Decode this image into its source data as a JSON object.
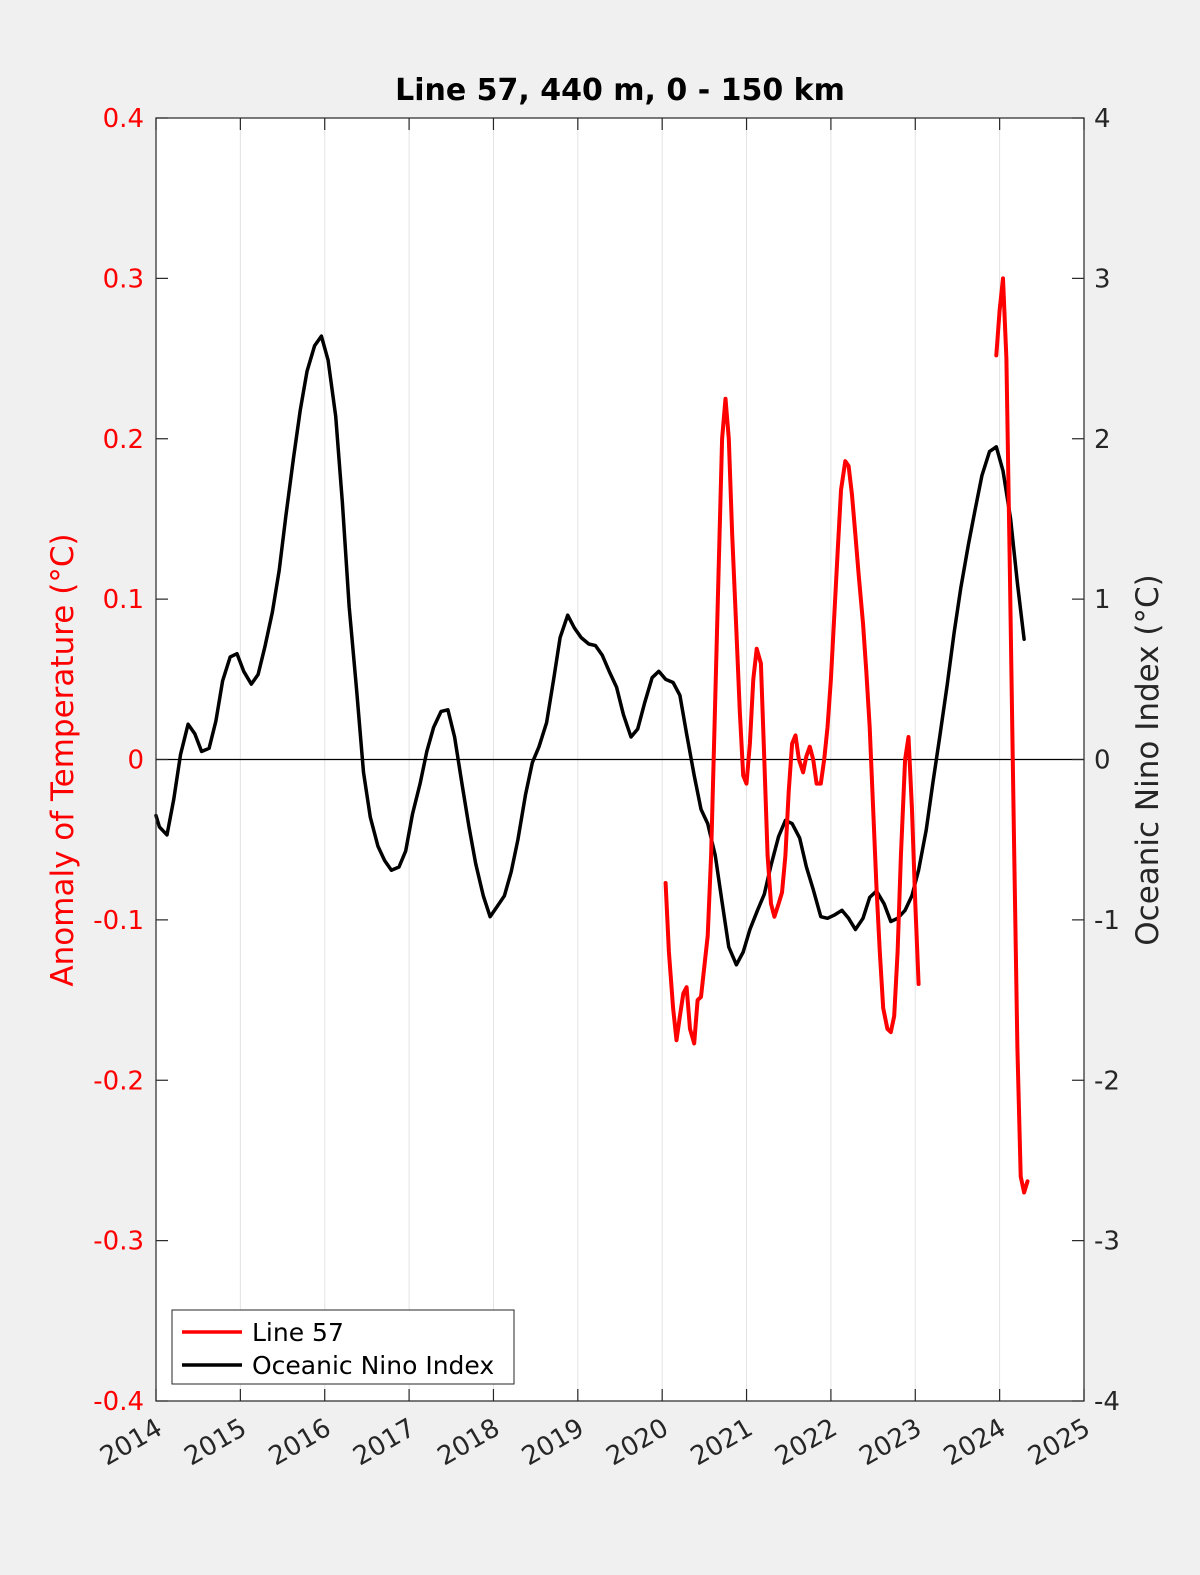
{
  "chart_data": {
    "type": "line",
    "title": "Line 57, 440 m, 0 - 150 km",
    "ylabel_left": "Anomaly of Temperature (°C)",
    "ylabel_right": "Oceanic Nino Index (°C)",
    "xlabel": "",
    "xlim": [
      2014,
      2025
    ],
    "ylim_left": [
      -0.4,
      0.4
    ],
    "ylim_right": [
      -4,
      4
    ],
    "x_ticks": [
      "2014",
      "2015",
      "2016",
      "2017",
      "2018",
      "2019",
      "2020",
      "2021",
      "2022",
      "2023",
      "2024",
      "2025"
    ],
    "y_left_ticks": [
      "-0.4",
      "-0.3",
      "-0.2",
      "-0.1",
      "0",
      "0.1",
      "0.2",
      "0.3",
      "0.4"
    ],
    "y_right_ticks": [
      "-4",
      "-3",
      "-2",
      "-1",
      "0",
      "1",
      "2",
      "3",
      "4"
    ],
    "grid": "vertical",
    "zero_line": true,
    "legend_position": "bottom-left",
    "colors": {
      "line57": "#ff0000",
      "oni": "#000000",
      "left_axis": "#ff0000",
      "right_axis": "#262626"
    },
    "series": [
      {
        "name": "Line 57",
        "axis": "left",
        "color": "#ff0000",
        "segments": [
          [
            [
              2020.04,
              -0.077
            ],
            [
              2020.08,
              -0.12
            ],
            [
              2020.13,
              -0.155
            ],
            [
              2020.17,
              -0.175
            ],
            [
              2020.21,
              -0.16
            ],
            [
              2020.25,
              -0.146
            ],
            [
              2020.29,
              -0.142
            ],
            [
              2020.33,
              -0.168
            ],
            [
              2020.38,
              -0.177
            ],
            [
              2020.42,
              -0.15
            ],
            [
              2020.46,
              -0.148
            ],
            [
              2020.54,
              -0.11
            ],
            [
              2020.58,
              -0.06
            ],
            [
              2020.62,
              0.02
            ],
            [
              2020.67,
              0.12
            ],
            [
              2020.71,
              0.2
            ],
            [
              2020.75,
              0.225
            ],
            [
              2020.79,
              0.2
            ],
            [
              2020.83,
              0.14
            ],
            [
              2020.88,
              0.08
            ],
            [
              2020.92,
              0.03
            ],
            [
              2020.96,
              -0.01
            ],
            [
              2021.0,
              -0.015
            ],
            [
              2021.04,
              0.01
            ],
            [
              2021.08,
              0.05
            ],
            [
              2021.12,
              0.069
            ],
            [
              2021.17,
              0.06
            ],
            [
              2021.21,
              0.0
            ],
            [
              2021.25,
              -0.06
            ],
            [
              2021.29,
              -0.09
            ],
            [
              2021.33,
              -0.098
            ],
            [
              2021.38,
              -0.09
            ],
            [
              2021.42,
              -0.083
            ],
            [
              2021.46,
              -0.06
            ],
            [
              2021.5,
              -0.02
            ],
            [
              2021.54,
              0.01
            ],
            [
              2021.58,
              0.015
            ],
            [
              2021.62,
              0.0
            ],
            [
              2021.67,
              -0.008
            ],
            [
              2021.71,
              0.002
            ],
            [
              2021.75,
              0.008
            ],
            [
              2021.79,
              0.0
            ],
            [
              2021.83,
              -0.015
            ],
            [
              2021.88,
              -0.015
            ],
            [
              2021.92,
              0.0
            ],
            [
              2021.96,
              0.02
            ],
            [
              2022.0,
              0.05
            ],
            [
              2022.04,
              0.09
            ],
            [
              2022.08,
              0.13
            ],
            [
              2022.12,
              0.168
            ],
            [
              2022.17,
              0.186
            ],
            [
              2022.21,
              0.183
            ],
            [
              2022.25,
              0.165
            ],
            [
              2022.29,
              0.14
            ],
            [
              2022.33,
              0.115
            ],
            [
              2022.38,
              0.085
            ],
            [
              2022.42,
              0.055
            ],
            [
              2022.46,
              0.02
            ],
            [
              2022.5,
              -0.03
            ],
            [
              2022.54,
              -0.08
            ],
            [
              2022.58,
              -0.12
            ],
            [
              2022.62,
              -0.155
            ],
            [
              2022.67,
              -0.168
            ],
            [
              2022.71,
              -0.17
            ],
            [
              2022.75,
              -0.16
            ],
            [
              2022.79,
              -0.12
            ],
            [
              2022.83,
              -0.06
            ],
            [
              2022.88,
              0.0
            ],
            [
              2022.92,
              0.014
            ],
            [
              2022.96,
              -0.03
            ],
            [
              2023.0,
              -0.09
            ],
            [
              2023.04,
              -0.14
            ]
          ],
          [
            [
              2023.96,
              0.252
            ],
            [
              2024.0,
              0.28
            ],
            [
              2024.04,
              0.3
            ],
            [
              2024.08,
              0.25
            ],
            [
              2024.12,
              0.12
            ],
            [
              2024.17,
              -0.05
            ],
            [
              2024.21,
              -0.18
            ],
            [
              2024.25,
              -0.26
            ],
            [
              2024.29,
              -0.27
            ],
            [
              2024.33,
              -0.263
            ]
          ]
        ]
      },
      {
        "name": "Oceanic Nino Index",
        "axis": "right",
        "color": "#000000",
        "points": [
          [
            2014.0,
            -0.35
          ],
          [
            2014.04,
            -0.42
          ],
          [
            2014.13,
            -0.47
          ],
          [
            2014.21,
            -0.25
          ],
          [
            2014.29,
            0.03
          ],
          [
            2014.38,
            0.22
          ],
          [
            2014.46,
            0.16
          ],
          [
            2014.54,
            0.05
          ],
          [
            2014.63,
            0.07
          ],
          [
            2014.71,
            0.24
          ],
          [
            2014.79,
            0.49
          ],
          [
            2014.88,
            0.64
          ],
          [
            2014.96,
            0.66
          ],
          [
            2015.04,
            0.55
          ],
          [
            2015.13,
            0.47
          ],
          [
            2015.21,
            0.53
          ],
          [
            2015.29,
            0.7
          ],
          [
            2015.38,
            0.92
          ],
          [
            2015.46,
            1.18
          ],
          [
            2015.54,
            1.52
          ],
          [
            2015.63,
            1.88
          ],
          [
            2015.71,
            2.18
          ],
          [
            2015.79,
            2.42
          ],
          [
            2015.88,
            2.58
          ],
          [
            2015.96,
            2.64
          ],
          [
            2016.04,
            2.49
          ],
          [
            2016.13,
            2.14
          ],
          [
            2016.21,
            1.6
          ],
          [
            2016.29,
            0.95
          ],
          [
            2016.38,
            0.42
          ],
          [
            2016.46,
            -0.08
          ],
          [
            2016.54,
            -0.36
          ],
          [
            2016.63,
            -0.54
          ],
          [
            2016.71,
            -0.63
          ],
          [
            2016.79,
            -0.69
          ],
          [
            2016.88,
            -0.67
          ],
          [
            2016.96,
            -0.57
          ],
          [
            2017.04,
            -0.34
          ],
          [
            2017.13,
            -0.15
          ],
          [
            2017.21,
            0.05
          ],
          [
            2017.29,
            0.2
          ],
          [
            2017.38,
            0.3
          ],
          [
            2017.46,
            0.31
          ],
          [
            2017.54,
            0.14
          ],
          [
            2017.63,
            -0.16
          ],
          [
            2017.71,
            -0.42
          ],
          [
            2017.79,
            -0.65
          ],
          [
            2017.88,
            -0.85
          ],
          [
            2017.96,
            -0.98
          ],
          [
            2018.04,
            -0.92
          ],
          [
            2018.13,
            -0.85
          ],
          [
            2018.21,
            -0.7
          ],
          [
            2018.29,
            -0.5
          ],
          [
            2018.38,
            -0.22
          ],
          [
            2018.46,
            -0.02
          ],
          [
            2018.54,
            0.08
          ],
          [
            2018.63,
            0.23
          ],
          [
            2018.71,
            0.49
          ],
          [
            2018.79,
            0.76
          ],
          [
            2018.88,
            0.9
          ],
          [
            2018.96,
            0.82
          ],
          [
            2019.04,
            0.76
          ],
          [
            2019.13,
            0.72
          ],
          [
            2019.21,
            0.71
          ],
          [
            2019.29,
            0.65
          ],
          [
            2019.38,
            0.54
          ],
          [
            2019.46,
            0.45
          ],
          [
            2019.54,
            0.28
          ],
          [
            2019.63,
            0.14
          ],
          [
            2019.71,
            0.19
          ],
          [
            2019.79,
            0.35
          ],
          [
            2019.88,
            0.51
          ],
          [
            2019.96,
            0.55
          ],
          [
            2020.04,
            0.5
          ],
          [
            2020.13,
            0.48
          ],
          [
            2020.21,
            0.4
          ],
          [
            2020.29,
            0.16
          ],
          [
            2020.38,
            -0.1
          ],
          [
            2020.46,
            -0.31
          ],
          [
            2020.54,
            -0.4
          ],
          [
            2020.63,
            -0.6
          ],
          [
            2020.71,
            -0.89
          ],
          [
            2020.79,
            -1.17
          ],
          [
            2020.88,
            -1.28
          ],
          [
            2020.96,
            -1.2
          ],
          [
            2021.04,
            -1.06
          ],
          [
            2021.13,
            -0.94
          ],
          [
            2021.21,
            -0.84
          ],
          [
            2021.29,
            -0.66
          ],
          [
            2021.38,
            -0.48
          ],
          [
            2021.46,
            -0.38
          ],
          [
            2021.54,
            -0.4
          ],
          [
            2021.63,
            -0.49
          ],
          [
            2021.71,
            -0.67
          ],
          [
            2021.79,
            -0.81
          ],
          [
            2021.88,
            -0.98
          ],
          [
            2021.96,
            -0.99
          ],
          [
            2022.04,
            -0.97
          ],
          [
            2022.13,
            -0.94
          ],
          [
            2022.21,
            -0.99
          ],
          [
            2022.29,
            -1.06
          ],
          [
            2022.38,
            -0.99
          ],
          [
            2022.46,
            -0.86
          ],
          [
            2022.54,
            -0.82
          ],
          [
            2022.63,
            -0.9
          ],
          [
            2022.71,
            -1.01
          ],
          [
            2022.79,
            -0.99
          ],
          [
            2022.88,
            -0.94
          ],
          [
            2022.96,
            -0.85
          ],
          [
            2023.04,
            -0.69
          ],
          [
            2023.13,
            -0.44
          ],
          [
            2023.21,
            -0.14
          ],
          [
            2023.29,
            0.14
          ],
          [
            2023.38,
            0.47
          ],
          [
            2023.46,
            0.79
          ],
          [
            2023.54,
            1.07
          ],
          [
            2023.63,
            1.34
          ],
          [
            2023.71,
            1.56
          ],
          [
            2023.79,
            1.77
          ],
          [
            2023.88,
            1.92
          ],
          [
            2023.96,
            1.95
          ],
          [
            2024.04,
            1.8
          ],
          [
            2024.13,
            1.5
          ],
          [
            2024.21,
            1.1
          ],
          [
            2024.29,
            0.75
          ]
        ]
      }
    ]
  }
}
